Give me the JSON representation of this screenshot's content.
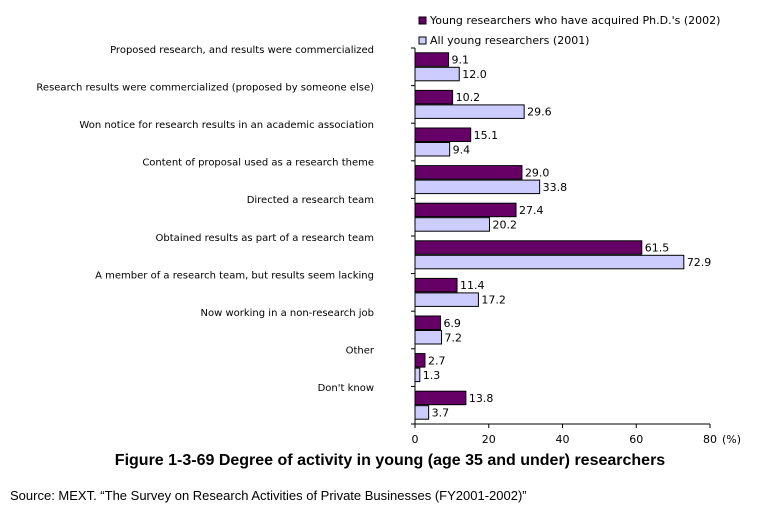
{
  "chart_data": {
    "type": "bar",
    "orientation": "horizontal",
    "categories": [
      "Proposed research, and results were commercialized",
      "Research results were commercialized (proposed by someone else)",
      "Won notice for research results in an academic association",
      "Content of proposal used as a research theme",
      "Directed a research team",
      "Obtained results as part of a research team",
      "A member of a research team, but results seem lacking",
      "Now working in a non-research job",
      "Other",
      "Don't know"
    ],
    "series": [
      {
        "name": "Young researchers who have acquired Ph.D.'s (2002)",
        "color": "#660066",
        "values": [
          9.1,
          10.2,
          15.1,
          29.0,
          27.4,
          61.5,
          11.4,
          6.9,
          2.7,
          13.8
        ],
        "labels": [
          "9.1",
          "10.2",
          "15.1",
          "29.0",
          "27.4",
          "61.5",
          "11.4",
          "6.9",
          "2.7",
          "13.8"
        ]
      },
      {
        "name": "All young researchers (2001)",
        "color": "#ccccff",
        "values": [
          12.0,
          29.6,
          9.4,
          33.8,
          20.2,
          72.9,
          17.2,
          7.2,
          1.3,
          3.7
        ],
        "labels": [
          "12.0",
          "29.6",
          "9.4",
          "33.8",
          "20.2",
          "72.9",
          "17.2",
          "7.2",
          "1.3",
          "3.7"
        ]
      }
    ],
    "xlim": [
      0,
      80
    ],
    "xticks": [
      "0",
      "20",
      "40",
      "60",
      "80"
    ],
    "xlabel": "(%)",
    "legend_position": "top-right",
    "grid": false
  },
  "caption": "Figure 1-3-69 Degree of activity in young (age 35 and under) researchers",
  "source": "Source: MEXT. “The Survey on Research Activities of Private Businesses (FY2001-2002)”"
}
